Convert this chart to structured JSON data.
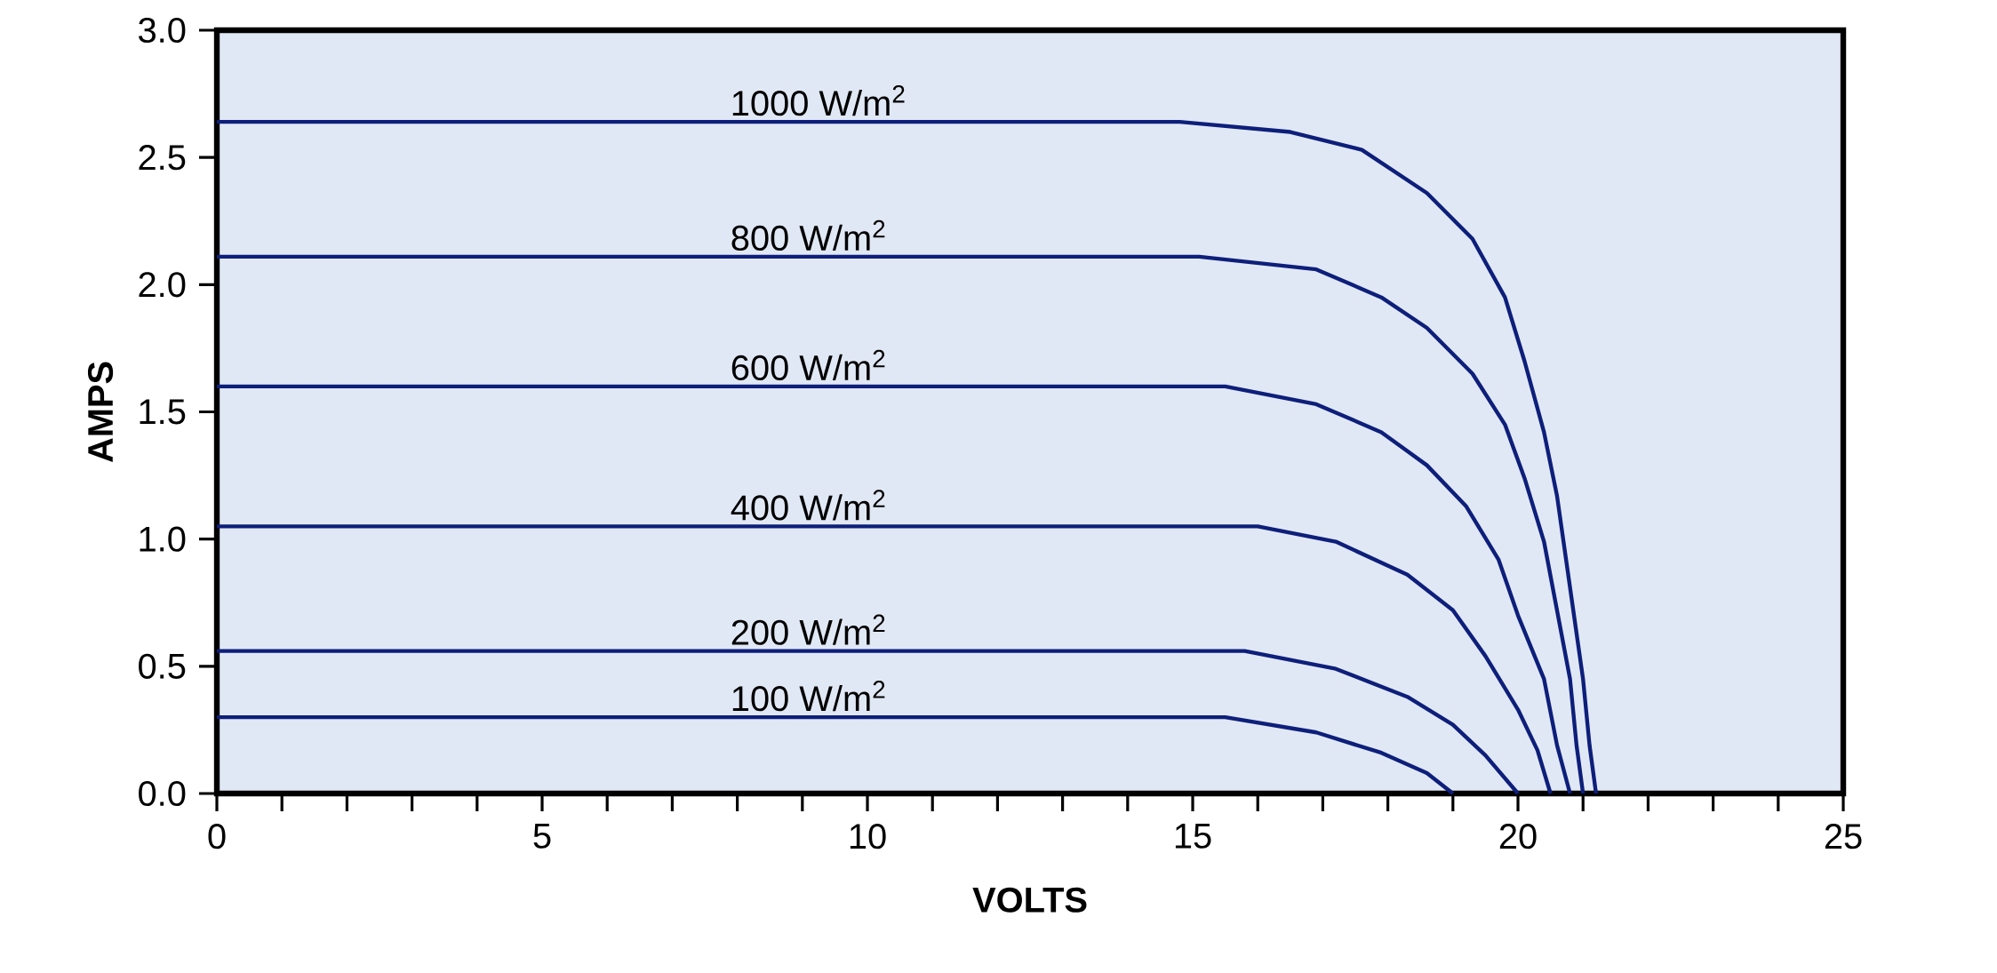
{
  "chart_data": {
    "type": "line",
    "xlabel": "VOLTS",
    "ylabel": "AMPS",
    "xlim": [
      0,
      25
    ],
    "ylim": [
      0,
      3
    ],
    "xticks": [
      0,
      5,
      10,
      15,
      20,
      25
    ],
    "yticks": [
      {
        "value": 0,
        "label": "0.0"
      },
      {
        "value": 0.5,
        "label": "0.5"
      },
      {
        "value": 1,
        "label": "1.0"
      },
      {
        "value": 1.5,
        "label": "1.5"
      },
      {
        "value": 2,
        "label": "2.0"
      },
      {
        "value": 2.5,
        "label": "2.5"
      },
      {
        "value": 3,
        "label": "3.0"
      }
    ],
    "series": [
      {
        "name": "1000 W/m$^{2}$",
        "color": "#0d1f7a",
        "x": [
          0,
          14.8,
          16.5,
          17.6,
          18.6,
          19.3,
          19.8,
          20.1,
          20.4,
          20.6,
          20.8,
          21.0,
          21.1,
          21.2
        ],
        "values": [
          2.64,
          2.64,
          2.6,
          2.53,
          2.36,
          2.18,
          1.95,
          1.7,
          1.42,
          1.17,
          0.81,
          0.45,
          0.19,
          0
        ]
      },
      {
        "name": "800 W/m$^{2}$",
        "color": "#0d1f7a",
        "x": [
          0,
          15.1,
          16.9,
          17.9,
          18.6,
          19.3,
          19.8,
          20.1,
          20.4,
          20.6,
          20.8,
          20.9,
          21.0
        ],
        "values": [
          2.11,
          2.11,
          2.06,
          1.95,
          1.83,
          1.65,
          1.45,
          1.24,
          0.99,
          0.72,
          0.45,
          0.19,
          0
        ]
      },
      {
        "name": "600 W/m$^{2}$",
        "color": "#0d1f7a",
        "x": [
          0,
          15.5,
          16.9,
          17.9,
          18.6,
          19.2,
          19.7,
          20.0,
          20.4,
          20.6,
          20.8
        ],
        "values": [
          1.6,
          1.6,
          1.53,
          1.42,
          1.29,
          1.13,
          0.92,
          0.7,
          0.45,
          0.19,
          0
        ]
      },
      {
        "name": "400 W/m$^{2}$",
        "color": "#0d1f7a",
        "x": [
          0,
          16.0,
          17.2,
          18.3,
          19.0,
          19.5,
          20.0,
          20.3,
          20.5
        ],
        "values": [
          1.05,
          1.05,
          0.99,
          0.86,
          0.72,
          0.54,
          0.33,
          0.17,
          0
        ]
      },
      {
        "name": "200 W/m$^{2}$",
        "color": "#0d1f7a",
        "x": [
          0,
          15.8,
          17.2,
          18.3,
          19.0,
          19.5,
          20.0
        ],
        "values": [
          0.56,
          0.56,
          0.49,
          0.38,
          0.27,
          0.15,
          0
        ]
      },
      {
        "name": "100 W/m$^{2}$",
        "color": "#0d1f7a",
        "x": [
          0,
          15.5,
          16.9,
          17.9,
          18.6,
          19.0
        ],
        "values": [
          0.3,
          0.3,
          0.24,
          0.16,
          0.08,
          0
        ]
      }
    ]
  }
}
